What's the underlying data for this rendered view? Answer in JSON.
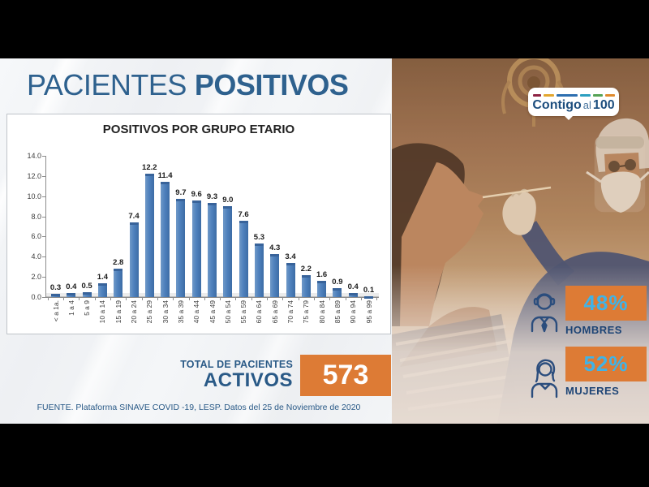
{
  "page_title": {
    "regular": "PACIENTES",
    "bold": "POSITIVOS"
  },
  "chart_data": {
    "type": "bar",
    "title": "POSITIVOS POR GRUPO ETARIO",
    "categories": [
      "< a 1a.",
      "1 a 4",
      "5 a 9",
      "10 a 14",
      "15 a 19",
      "20 a 24",
      "25 a 29",
      "30 a 34",
      "35 a 39",
      "40 a 44",
      "45 a 49",
      "50 a 54",
      "55 a 59",
      "60 a 64",
      "65 a 69",
      "70 a 74",
      "75 a 79",
      "80 a 84",
      "85 a 89",
      "90 a 94",
      "95 a 99"
    ],
    "values": [
      0.3,
      0.4,
      0.5,
      1.4,
      2.8,
      7.4,
      12.2,
      11.4,
      9.7,
      9.6,
      9.3,
      9.0,
      7.6,
      5.3,
      4.3,
      3.4,
      2.2,
      1.6,
      0.9,
      0.4,
      0.1
    ],
    "value_labels": [
      "0.3",
      "0.4",
      "0.5",
      "1.4",
      "2.8",
      "7.4",
      "12.2",
      "11.4",
      "9.7",
      "9.6",
      "9.3",
      "9.0",
      "7.6",
      "5.3",
      "4.3",
      "3.4",
      "2.2",
      "1.6",
      "0.9",
      "0.4",
      "0.1"
    ],
    "ylim": [
      0,
      14
    ],
    "yticks": [
      0,
      2,
      4,
      6,
      8,
      10,
      12,
      14
    ],
    "ytick_labels": [
      "0.0",
      "2.0",
      "4.0",
      "6.0",
      "8.0",
      "10.0",
      "12.0",
      "14.0"
    ],
    "xlabel": "",
    "ylabel": "",
    "grid": false,
    "legend": false,
    "bar_color": "#4f81bd",
    "x_labels_rotated_90": true
  },
  "totals": {
    "line1": "TOTAL DE PACIENTES",
    "line2": "ACTIVOS",
    "value": "573"
  },
  "source": "FUENTE. Plataforma SINAVE COVID -19, LESP. Datos del 25 de Noviembre de 2020",
  "logo": {
    "part1": "Contigo",
    "part2": "al",
    "part3": "100",
    "dash_colors": [
      "#8e2344",
      "#e3a72f",
      "#2d6fb0",
      "#2d9fc0",
      "#56a356",
      "#e08a2e"
    ],
    "dash_widths": [
      10,
      13,
      26,
      13,
      12,
      12
    ]
  },
  "stats": [
    {
      "percent": "48%",
      "label": "HOMBRES",
      "icon": "man-icon"
    },
    {
      "percent": "52%",
      "label": "MUJERES",
      "icon": "woman-icon"
    }
  ],
  "photo": {
    "description": "Healthcare worker in PPE performing nasal swab test on a woman, sepia toned"
  },
  "colors": {
    "accent_orange": "#dd7b35",
    "accent_cyan": "#41b3e6",
    "title_blue": "#2e618e",
    "label_navy": "#1d4475",
    "bar_blue": "#4f81bd",
    "frame_black": "#000000"
  }
}
